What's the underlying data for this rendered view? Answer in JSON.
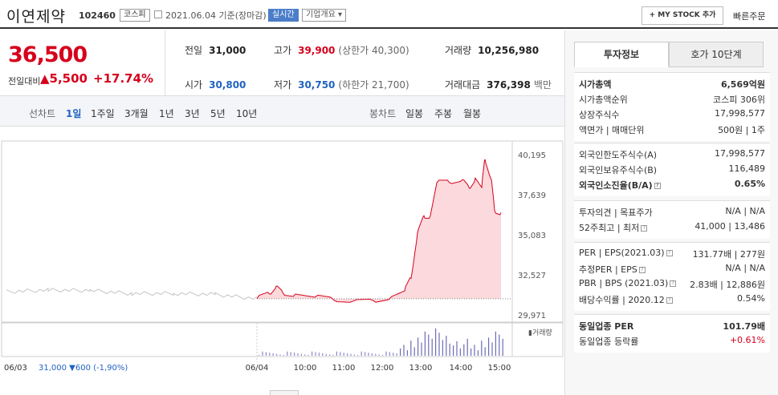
{
  "header": {
    "name": "이연제약",
    "code": "102460",
    "market": "코스피",
    "date": "2021.06.04  기준(장마감)",
    "live": "실시간",
    "overview": "기업개요 ▾",
    "mystock": "+ MY STOCK 추가",
    "fast_order": "빠른주문"
  },
  "summary": {
    "price": "36,500",
    "diff_label": "전일대비",
    "diff": "▲5,500",
    "diff_pct": "+17.74%",
    "prev_close": {
      "label": "전일",
      "value": "31,000"
    },
    "high": {
      "label": "고가",
      "value": "39,900",
      "sub": "(상한가 40,300)"
    },
    "volume": {
      "label": "거래량",
      "value": "10,256,980"
    },
    "open": {
      "label": "시가",
      "value": "30,800"
    },
    "low": {
      "label": "저가",
      "value": "30,750",
      "sub": "(하한가 21,700)"
    },
    "amount": {
      "label": "거래대금",
      "value": "376,398",
      "unit": "백만"
    }
  },
  "tabs": {
    "line_label": "선차트",
    "line_periods": [
      "1일",
      "1주일",
      "3개월",
      "1년",
      "3년",
      "5년",
      "10년"
    ],
    "candle_label": "봉차트",
    "candle_periods": [
      "일봉",
      "주봉",
      "월봉"
    ]
  },
  "colors": {
    "up": "#d6001c",
    "down": "#2163c2",
    "accent": "#4b7dc9"
  },
  "chart_data": {
    "type": "line",
    "title": "",
    "y_ticks": [
      40195,
      37639,
      35083,
      32527,
      29971
    ],
    "ylim": [
      29971,
      40195
    ],
    "x_ticks": [
      "06/04",
      "10:00",
      "11:00",
      "12:00",
      "13:00",
      "14:00",
      "15:00"
    ],
    "prev_x_tick": "06/03",
    "volume_label": "거래량",
    "footer": "31,000 ▼600 (-1,90%)",
    "series": [
      {
        "x": [
          "06/03 09:00",
          "06/03 10:00",
          "06/03 11:00",
          "06/03 12:00",
          "06/03 13:00",
          "06/03 14:00",
          "06/03 15:30"
        ],
        "values": [
          31450,
          31550,
          31530,
          31330,
          31340,
          31270,
          31000
        ]
      },
      {
        "x": [
          "09:00",
          "09:20",
          "09:30",
          "09:40",
          "10:00",
          "10:30",
          "11:00",
          "11:30",
          "12:00",
          "12:30",
          "12:50",
          "13:00",
          "13:10",
          "13:20",
          "13:30",
          "13:40",
          "14:00",
          "14:20",
          "14:30",
          "14:40",
          "14:50",
          "14:55",
          "15:05",
          "15:10",
          "15:20"
        ],
        "values": [
          31000,
          31300,
          31800,
          31400,
          31300,
          31100,
          30900,
          30850,
          30900,
          31150,
          31500,
          32300,
          35200,
          36300,
          36300,
          38400,
          38400,
          38600,
          38100,
          38700,
          38100,
          39900,
          38600,
          36650,
          36500
        ]
      }
    ],
    "volume": [
      12,
      18,
      9,
      25,
      14,
      30,
      22,
      40,
      35,
      28,
      45,
      38,
      26,
      33,
      20,
      17,
      24,
      12,
      19,
      28
    ]
  },
  "side": {
    "tab_on": "투자정보",
    "tab_off": "호가 10단계",
    "g1": [
      {
        "k": "시가총액",
        "v": "6,569억원",
        "kb": true,
        "vb": true
      },
      {
        "k": "시가총액순위",
        "v": "코스피  306위"
      },
      {
        "k": "상장주식수",
        "v": "17,998,577"
      },
      {
        "k": "액면가 | 매매단위",
        "v": "500원  |  1주"
      }
    ],
    "g2": [
      {
        "k": "외국인한도주식수(A)",
        "v": "17,998,577"
      },
      {
        "k": "외국인보유주식수(B)",
        "v": "116,489"
      },
      {
        "k": "외국인소진율(B/A)",
        "v": "0.65%",
        "kb": true,
        "vb": true,
        "h": true
      }
    ],
    "g3": [
      {
        "k": "투자의견  |  목표주가",
        "v": "N/A  |  N/A"
      },
      {
        "k": "52주최고  |  최저",
        "v": "41,000  |  13,486",
        "h": true
      }
    ],
    "g4": [
      {
        "k": "PER  |  EPS(2021.03)",
        "v": "131.77배  |  277원",
        "h": true
      },
      {
        "k": "추정PER  |  EPS",
        "v": "N/A  |  N/A",
        "h": true
      },
      {
        "k": "PBR  |  BPS (2021.03)",
        "v": "2.83배  |  12,886원",
        "h": true
      },
      {
        "k": "배당수익률  |  2020.12",
        "v": "0.54%",
        "h": true
      }
    ],
    "g5": [
      {
        "k": "동일업종 PER",
        "v": "101.79배",
        "kb": true,
        "vb": true
      },
      {
        "k": "동일업종 등락률",
        "v": "+0.61%",
        "up": true
      }
    ]
  }
}
